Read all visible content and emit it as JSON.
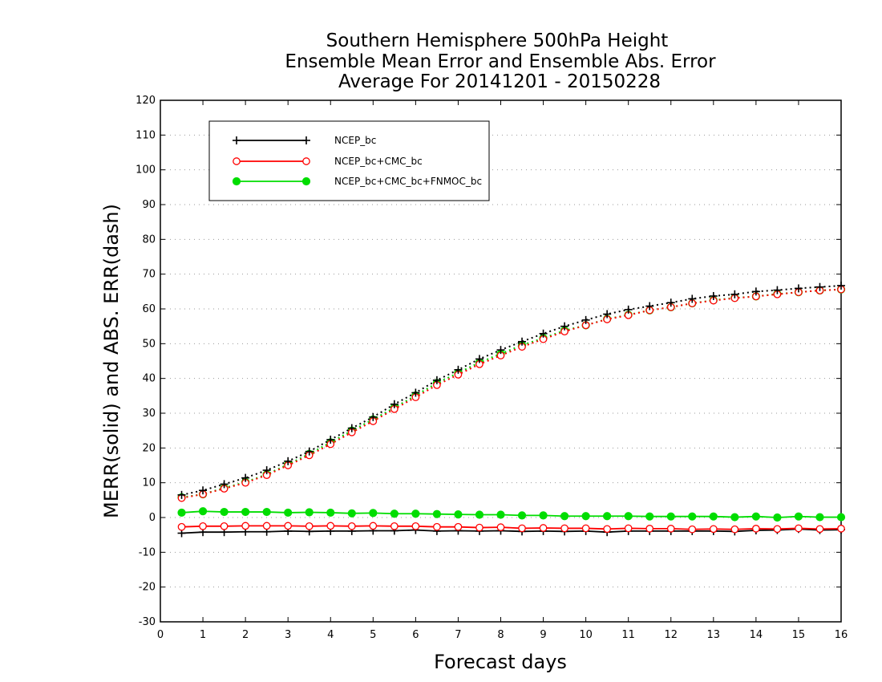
{
  "chart_data": {
    "type": "line",
    "title": [
      "Southern Hemisphere 500hPa Height",
      "Ensemble Mean Error and Ensemble Abs. Error",
      "Average For 20141201 - 20150228"
    ],
    "xlabel": "Forecast days",
    "ylabel": "MERR(solid) and ABS. ERR(dash)",
    "xlim": [
      0,
      16
    ],
    "ylim": [
      -30,
      120
    ],
    "xticks": [
      0,
      1,
      2,
      3,
      4,
      5,
      6,
      7,
      8,
      9,
      10,
      11,
      12,
      13,
      14,
      15,
      16
    ],
    "yticks": [
      -30,
      -20,
      -10,
      0,
      10,
      20,
      30,
      40,
      50,
      60,
      70,
      80,
      90,
      100,
      110,
      120
    ],
    "grid": "dotted horizontal",
    "legend_position": "top-left",
    "x": [
      0.5,
      1,
      1.5,
      2,
      2.5,
      3,
      3.5,
      4,
      4.5,
      5,
      5.5,
      6,
      6.5,
      7,
      7.5,
      8,
      8.5,
      9,
      9.5,
      10,
      10.5,
      11,
      11.5,
      12,
      12.5,
      13,
      13.5,
      14,
      14.5,
      15,
      15.5,
      16
    ],
    "series": [
      {
        "name": "NCEP_bc",
        "color": "#000000",
        "marker": "plus",
        "merr": [
          -4.5,
          -4.2,
          -4.2,
          -4.1,
          -4.1,
          -3.9,
          -4.0,
          -3.9,
          -3.9,
          -3.8,
          -3.8,
          -3.6,
          -3.9,
          -3.8,
          -3.9,
          -3.8,
          -4.0,
          -3.9,
          -4.0,
          -3.9,
          -4.2,
          -3.9,
          -3.9,
          -3.9,
          -3.9,
          -3.9,
          -4.0,
          -3.7,
          -3.6,
          -3.3,
          -3.6,
          -3.5
        ],
        "abs_err": [
          6.5,
          7.8,
          9.6,
          11.4,
          13.6,
          16.2,
          19.0,
          22.4,
          25.7,
          28.9,
          32.6,
          35.9,
          39.5,
          42.5,
          45.6,
          48.2,
          50.6,
          52.9,
          55.0,
          56.8,
          58.5,
          59.8,
          60.8,
          61.8,
          62.9,
          63.7,
          64.2,
          65.0,
          65.4,
          65.9,
          66.3,
          66.7
        ]
      },
      {
        "name": "NCEP_bc+CMC_bc",
        "color": "#ff0000",
        "marker": "open-circle",
        "merr": [
          -2.7,
          -2.5,
          -2.5,
          -2.4,
          -2.4,
          -2.4,
          -2.5,
          -2.4,
          -2.5,
          -2.4,
          -2.5,
          -2.5,
          -2.7,
          -2.7,
          -2.9,
          -2.8,
          -3.1,
          -3.0,
          -3.1,
          -3.1,
          -3.3,
          -3.1,
          -3.2,
          -3.2,
          -3.4,
          -3.3,
          -3.4,
          -3.2,
          -3.3,
          -3.1,
          -3.3,
          -3.2
        ],
        "abs_err": [
          5.6,
          6.7,
          8.3,
          10.0,
          12.2,
          15.0,
          17.9,
          21.1,
          24.5,
          27.7,
          31.2,
          34.6,
          38.1,
          41.1,
          44.1,
          46.6,
          49.1,
          51.3,
          53.5,
          55.3,
          57.0,
          58.2,
          59.6,
          60.5,
          61.6,
          62.4,
          63.1,
          63.6,
          64.2,
          64.8,
          65.3,
          65.6
        ]
      },
      {
        "name": "NCEP_bc+CMC_bc+FNMOC_bc",
        "color": "#00dd00",
        "marker": "filled-circle",
        "merr": [
          1.4,
          1.8,
          1.6,
          1.6,
          1.6,
          1.4,
          1.5,
          1.4,
          1.2,
          1.3,
          1.1,
          1.1,
          1.0,
          0.9,
          0.8,
          0.8,
          0.6,
          0.6,
          0.4,
          0.4,
          0.4,
          0.4,
          0.3,
          0.3,
          0.3,
          0.3,
          0.1,
          0.3,
          0.0,
          0.3,
          0.1,
          0.1
        ],
        "abs_err": [
          5.8,
          6.7,
          8.5,
          10.2,
          12.4,
          15.3,
          18.3,
          21.6,
          25.0,
          28.2,
          31.6,
          35.1,
          38.7,
          41.6,
          44.6,
          47.1,
          49.6,
          51.6,
          53.8,
          55.3,
          57.1,
          58.3,
          59.6,
          60.5,
          61.6,
          62.5,
          63.2,
          63.6,
          64.3,
          64.8,
          65.3,
          65.6
        ]
      }
    ]
  }
}
